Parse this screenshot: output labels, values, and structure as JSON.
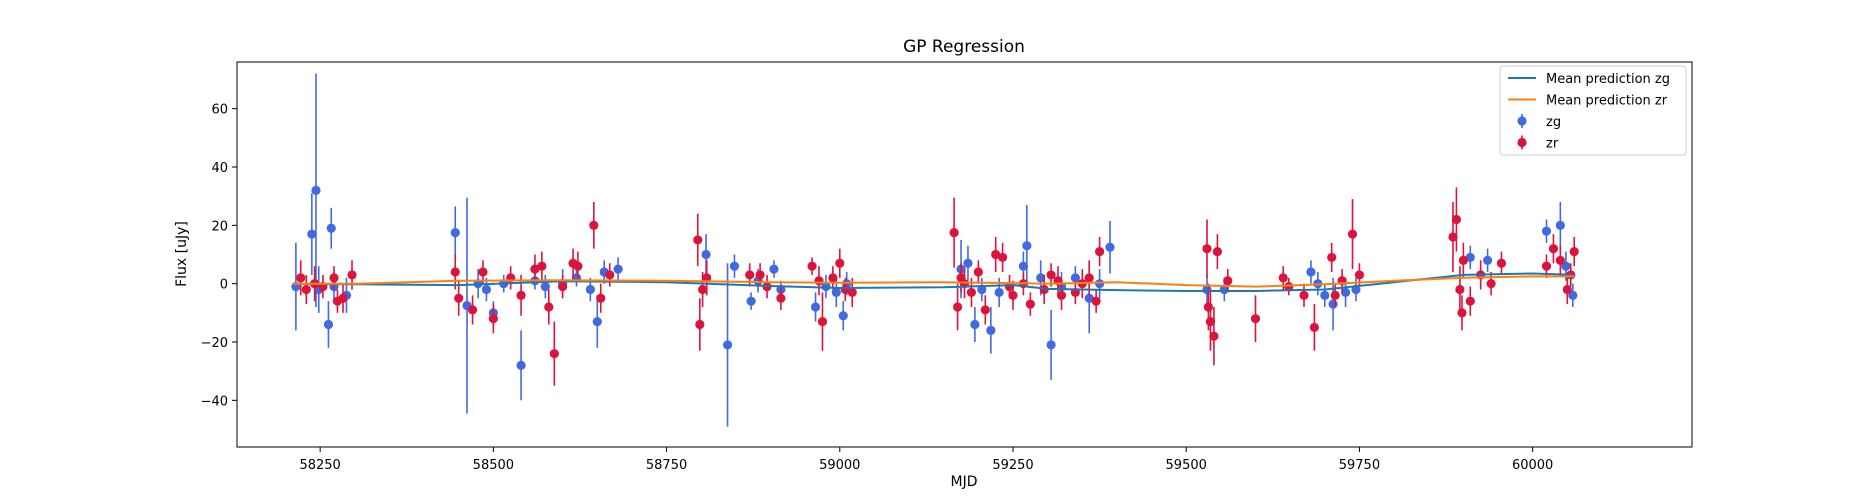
{
  "chart_data": {
    "type": "scatter",
    "title": "GP Regression",
    "xlabel": "MJD",
    "ylabel": "Flux [uJy]",
    "xlim": [
      58130,
      60230
    ],
    "ylim": [
      -56,
      76
    ],
    "xticks": [
      58250,
      58500,
      58750,
      59000,
      59250,
      59500,
      59750,
      60000
    ],
    "xtick_labels": [
      "58250",
      "58500",
      "58750",
      "59000",
      "59250",
      "59500",
      "59750",
      "60000"
    ],
    "yticks": [
      -40,
      -20,
      0,
      20,
      40,
      60
    ],
    "ytick_labels": [
      "−40",
      "−20",
      "0",
      "20",
      "40",
      "60"
    ],
    "grid": false,
    "legend_position": "top-right",
    "series": [
      {
        "name": "Mean prediction zg",
        "kind": "line",
        "color": "#1f77b4",
        "x": [
          58210,
          58300,
          58450,
          58600,
          58750,
          58900,
          59000,
          59150,
          59250,
          59300,
          59400,
          59500,
          59600,
          59700,
          59800,
          59900,
          60000,
          60060
        ],
        "y": [
          0.0,
          -0.2,
          -0.5,
          0.8,
          0.5,
          -0.8,
          -1.5,
          -1.2,
          -0.5,
          -1.8,
          -2.2,
          -2.5,
          -2.5,
          -2.0,
          0.5,
          3.0,
          3.5,
          3.0
        ]
      },
      {
        "name": "Mean prediction zr",
        "kind": "line",
        "color": "#ff7f0e",
        "x": [
          58210,
          58300,
          58450,
          58600,
          58750,
          58900,
          59000,
          59150,
          59250,
          59300,
          59400,
          59500,
          59600,
          59700,
          59800,
          59900,
          60000,
          60060
        ],
        "y": [
          0.0,
          0.0,
          1.0,
          1.2,
          1.0,
          0.5,
          0.3,
          0.5,
          0.2,
          0.0,
          0.5,
          -0.5,
          -1.0,
          -0.2,
          1.0,
          2.0,
          2.5,
          2.5
        ]
      },
      {
        "name": "zg",
        "kind": "errorbar",
        "color": "#4169e1",
        "points": [
          [
            58215,
            -1,
            15
          ],
          [
            58238,
            17,
            14
          ],
          [
            58244,
            32,
            40
          ],
          [
            58248,
            -2,
            8
          ],
          [
            58262,
            -14,
            8
          ],
          [
            58266,
            19,
            7
          ],
          [
            58270,
            -1,
            5
          ],
          [
            58288,
            -4,
            6
          ],
          [
            58445,
            17.5,
            9
          ],
          [
            58462,
            -7.5,
            37
          ],
          [
            58478,
            0,
            5
          ],
          [
            58490,
            -2,
            4
          ],
          [
            58500,
            -10,
            4
          ],
          [
            58515,
            0,
            3
          ],
          [
            58540,
            -28,
            12
          ],
          [
            58560,
            1,
            3
          ],
          [
            58575,
            -1,
            4
          ],
          [
            58600,
            0,
            5
          ],
          [
            58620,
            2,
            3
          ],
          [
            58640,
            -2,
            4
          ],
          [
            58650,
            -13,
            9
          ],
          [
            58660,
            4,
            4
          ],
          [
            58680,
            5,
            4
          ],
          [
            58807,
            10,
            7
          ],
          [
            58838,
            -21,
            28
          ],
          [
            58848,
            6,
            4
          ],
          [
            58872,
            -6,
            3
          ],
          [
            58882,
            1,
            4
          ],
          [
            58905,
            5,
            3
          ],
          [
            58915,
            -2,
            3
          ],
          [
            58965,
            -8,
            5
          ],
          [
            58980,
            -1,
            4
          ],
          [
            58995,
            -3,
            5
          ],
          [
            59005,
            -11,
            5
          ],
          [
            59010,
            0,
            4
          ],
          [
            59175,
            5,
            10
          ],
          [
            59185,
            7,
            6
          ],
          [
            59195,
            -14,
            6
          ],
          [
            59205,
            -2,
            4
          ],
          [
            59218,
            -16,
            8
          ],
          [
            59230,
            -3,
            5
          ],
          [
            59265,
            6,
            5
          ],
          [
            59270,
            13,
            14
          ],
          [
            59290,
            2,
            6
          ],
          [
            59305,
            -21,
            12
          ],
          [
            59320,
            -1,
            5
          ],
          [
            59340,
            2,
            4
          ],
          [
            59360,
            -5,
            12
          ],
          [
            59375,
            0,
            5
          ],
          [
            59390,
            12.5,
            9
          ],
          [
            59530,
            -2,
            5
          ],
          [
            59555,
            -2,
            4
          ],
          [
            59680,
            4,
            4
          ],
          [
            59690,
            0,
            4
          ],
          [
            59700,
            -4,
            4
          ],
          [
            59712,
            -7,
            9
          ],
          [
            59730,
            -3,
            5
          ],
          [
            59745,
            -2,
            4
          ],
          [
            59910,
            9,
            4
          ],
          [
            59935,
            8,
            4
          ],
          [
            60020,
            18,
            4
          ],
          [
            60040,
            20,
            8
          ],
          [
            60048,
            6,
            5
          ],
          [
            60058,
            -4,
            4
          ]
        ]
      },
      {
        "name": "zr",
        "kind": "errorbar",
        "color": "#dc143c",
        "points": [
          [
            58222,
            2,
            6
          ],
          [
            58230,
            -2,
            5
          ],
          [
            58242,
            0,
            6
          ],
          [
            58254,
            -1,
            4
          ],
          [
            58270,
            2,
            4
          ],
          [
            58275,
            -6,
            4
          ],
          [
            58283,
            -5,
            5
          ],
          [
            58296,
            3,
            5
          ],
          [
            58445,
            4,
            6
          ],
          [
            58450,
            -5,
            6
          ],
          [
            58470,
            -9,
            5
          ],
          [
            58485,
            4,
            4
          ],
          [
            58500,
            -12,
            5
          ],
          [
            58525,
            2,
            4
          ],
          [
            58540,
            -4,
            7
          ],
          [
            58560,
            5,
            5
          ],
          [
            58570,
            6,
            5
          ],
          [
            58580,
            -8,
            6
          ],
          [
            58588,
            -24,
            11
          ],
          [
            58600,
            -1,
            4
          ],
          [
            58615,
            7,
            5
          ],
          [
            58622,
            6,
            5
          ],
          [
            58645,
            20,
            8
          ],
          [
            58655,
            -5,
            5
          ],
          [
            58668,
            3,
            4
          ],
          [
            58795,
            15,
            9
          ],
          [
            58798,
            -14,
            9
          ],
          [
            58802,
            -2,
            6
          ],
          [
            58808,
            2,
            6
          ],
          [
            58870,
            3,
            4
          ],
          [
            58885,
            3,
            4
          ],
          [
            58895,
            -1,
            4
          ],
          [
            58915,
            -5,
            4
          ],
          [
            58960,
            6,
            3
          ],
          [
            58970,
            1,
            5
          ],
          [
            58975,
            -13,
            10
          ],
          [
            58990,
            2,
            4
          ],
          [
            59000,
            7,
            5
          ],
          [
            59008,
            -2,
            4
          ],
          [
            59018,
            -3,
            5
          ],
          [
            59165,
            17.5,
            12
          ],
          [
            59170,
            -8,
            8
          ],
          [
            59175,
            2,
            5
          ],
          [
            59180,
            0,
            5
          ],
          [
            59190,
            -3,
            5
          ],
          [
            59200,
            4,
            4
          ],
          [
            59210,
            -9,
            5
          ],
          [
            59225,
            10,
            6
          ],
          [
            59235,
            9,
            5
          ],
          [
            59245,
            -1,
            4
          ],
          [
            59250,
            -4,
            5
          ],
          [
            59265,
            0,
            4
          ],
          [
            59275,
            -7,
            4
          ],
          [
            59295,
            -2,
            5
          ],
          [
            59305,
            3,
            4
          ],
          [
            59315,
            1,
            5
          ],
          [
            59320,
            -4,
            5
          ],
          [
            59340,
            -3,
            4
          ],
          [
            59350,
            0,
            5
          ],
          [
            59360,
            2,
            6
          ],
          [
            59370,
            -6,
            4
          ],
          [
            59375,
            11,
            5
          ],
          [
            59530,
            12,
            10
          ],
          [
            59532,
            -8,
            8
          ],
          [
            59535,
            -13,
            10
          ],
          [
            59540,
            -18,
            10
          ],
          [
            59545,
            11,
            6
          ],
          [
            59560,
            1,
            4
          ],
          [
            59600,
            -12,
            8
          ],
          [
            59640,
            2,
            4
          ],
          [
            59648,
            -1,
            3
          ],
          [
            59670,
            -4,
            4
          ],
          [
            59685,
            -15,
            8
          ],
          [
            59710,
            9,
            5
          ],
          [
            59715,
            -4,
            4
          ],
          [
            59725,
            1,
            4
          ],
          [
            59740,
            17,
            12
          ],
          [
            59750,
            3,
            4
          ],
          [
            59885,
            16,
            12
          ],
          [
            59890,
            22,
            11
          ],
          [
            59895,
            -2,
            8
          ],
          [
            59898,
            -10,
            6
          ],
          [
            59900,
            8,
            6
          ],
          [
            59910,
            -6,
            5
          ],
          [
            59925,
            3,
            5
          ],
          [
            59940,
            0,
            4
          ],
          [
            59955,
            7,
            4
          ],
          [
            60020,
            6,
            4
          ],
          [
            60030,
            12,
            5
          ],
          [
            60040,
            8,
            5
          ],
          [
            60050,
            -2,
            5
          ],
          [
            60055,
            3,
            4
          ],
          [
            60060,
            11,
            5
          ]
        ]
      }
    ]
  }
}
